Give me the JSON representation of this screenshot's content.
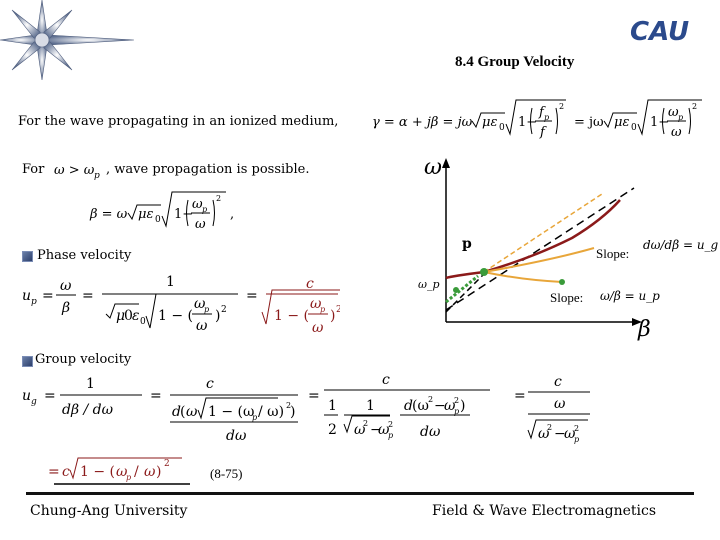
{
  "slide": {
    "title": "8.4 Group Velocity",
    "logo_text": "CAU",
    "intro": "For the wave propagating in an ionized medium,",
    "for_label": "For",
    "condition_text": ", wave propagation is possible.",
    "phase_velocity_label": "Phase velocity",
    "group_velocity_label": "Group velocity",
    "equation_number": "(8-75)",
    "footer_left": "Chung-Ang University",
    "footer_right": "Field & Wave Electromagnetics"
  },
  "equations": {
    "gamma": "γ = α + jβ = jω√(με₀) √(1 − (f_p/f)²) = jω√(με₀) √(1 − (ω_p/ω)²)",
    "condition": "ω > ω_p",
    "beta": "β = ω√(με₀) √(1 − (ω_p/ω)²)",
    "phase_velocity": "u_p = ω/β = 1/(√(με₀) √(1 − (ω_p/ω)²)) = c/√(1 − (ω_p/ω)²)",
    "group_velocity": "u_g = 1/(dβ/dω) = c/(d(ω√(1 − (ω_p/ω)²))/dω) = c/((1/2)(1/√(ω² − ω_p²)) d(ω² − ω_p²)/dω) = c/(ω/√(ω² − ω_p²))",
    "group_velocity_result": "= c √(1 − (ω_p/ω)²)"
  },
  "diagram": {
    "y_axis_label": "ω",
    "x_axis_label": "β",
    "point_label": "p",
    "wp_label": "ω_p",
    "slope_ug_label": "Slope:",
    "slope_ug_expr": "dω/dβ = u_g",
    "slope_up_label": "Slope:",
    "slope_up_expr": "ω/β = u_p",
    "colors": {
      "curve": "#8b1a1a",
      "tangent": "#e8a63a",
      "point": "#3a9b3a",
      "dashed": "#000000"
    }
  }
}
